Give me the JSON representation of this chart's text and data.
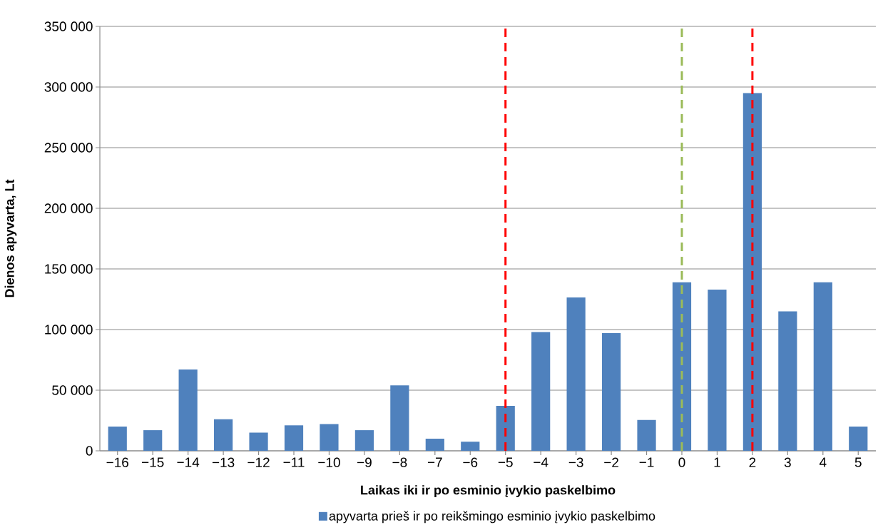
{
  "chart_data": {
    "type": "bar",
    "xlabel": "Laikas iki ir po esminio įvykio paskelbimo",
    "ylabel": "Dienos apyvarta, Lt",
    "x": [
      -16,
      -15,
      -14,
      -13,
      -12,
      -11,
      -10,
      -9,
      -8,
      -7,
      -6,
      -5,
      -4,
      -3,
      -2,
      -1,
      0,
      1,
      2,
      3,
      4,
      5
    ],
    "xlim": [
      -16.5,
      5.5
    ],
    "xticks": [
      {
        "value": -16,
        "label": "−16"
      },
      {
        "value": -15,
        "label": "−15"
      },
      {
        "value": -14,
        "label": "−14"
      },
      {
        "value": -13,
        "label": "−13"
      },
      {
        "value": -12,
        "label": "−12"
      },
      {
        "value": -11,
        "label": "−11"
      },
      {
        "value": -10,
        "label": "−10"
      },
      {
        "value": -9,
        "label": "−9"
      },
      {
        "value": -8,
        "label": "−8"
      },
      {
        "value": -7,
        "label": "−7"
      },
      {
        "value": -6,
        "label": "−6"
      },
      {
        "value": -5,
        "label": "−5"
      },
      {
        "value": -4,
        "label": "−4"
      },
      {
        "value": -3,
        "label": "−3"
      },
      {
        "value": -2,
        "label": "−2"
      },
      {
        "value": -1,
        "label": "−1"
      },
      0,
      1,
      2,
      3,
      4,
      5
    ],
    "ylim": [
      0,
      350000
    ],
    "yticks": [
      0,
      {
        "value": 50000,
        "label": "50 000"
      },
      {
        "value": 100000,
        "label": "100 000"
      },
      {
        "value": 150000,
        "label": "150 000"
      },
      {
        "value": 200000,
        "label": "200 000"
      },
      {
        "value": 250000,
        "label": "250 000"
      },
      {
        "value": 300000,
        "label": "300 000"
      },
      {
        "value": 350000,
        "label": "350 000"
      }
    ],
    "series": [
      {
        "name": "apyvarta prieš ir po reikšmingo esminio įvykio paskelbimo",
        "color": "#4f81bd",
        "values": [
          20000,
          17000,
          67000,
          26000,
          15000,
          21000,
          22000,
          17000,
          54000,
          10000,
          7500,
          37000,
          98000,
          126500,
          97000,
          25500,
          139000,
          133000,
          295000,
          115000,
          139000,
          20000
        ]
      }
    ],
    "ref_lines": [
      {
        "axis": "x",
        "value": -5,
        "color": "#ff0000",
        "line_style": "dashed"
      },
      {
        "axis": "x",
        "value": 0,
        "color": "#9bbb59",
        "line_style": "dashed"
      },
      {
        "axis": "x",
        "value": 2,
        "color": "#ff0000",
        "line_style": "dashed"
      }
    ],
    "grid": "y",
    "legend": "bottom"
  }
}
